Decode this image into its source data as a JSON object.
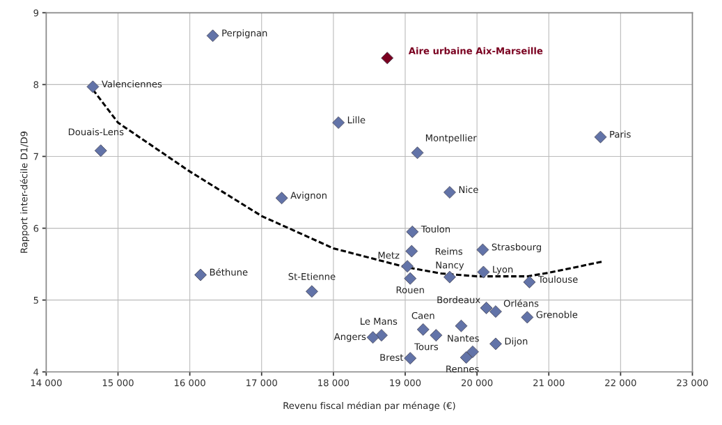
{
  "chart_data": {
    "type": "scatter",
    "xlabel": "Revenu fiscal médian par ménage (€)",
    "ylabel": "Rapport inter-décile D1/D9",
    "xlim": [
      14000,
      23000
    ],
    "xticks": [
      {
        "value": 14000,
        "label": "14 000"
      },
      {
        "value": 15000,
        "label": "15 000"
      },
      {
        "value": 16000,
        "label": "16 000"
      },
      {
        "value": 17000,
        "label": "17 000"
      },
      {
        "value": 18000,
        "label": "18 000"
      },
      {
        "value": 19000,
        "label": "19 000"
      },
      {
        "value": 20000,
        "label": "20 000"
      },
      {
        "value": 21000,
        "label": "21 000"
      },
      {
        "value": 22000,
        "label": "22 000"
      },
      {
        "value": 23000,
        "label": "23 000"
      }
    ],
    "ylim": [
      4,
      9
    ],
    "yticks": [
      4,
      5,
      6,
      7,
      8,
      9
    ],
    "grid": true,
    "marker": "diamond",
    "legend": false,
    "series": [
      {
        "color": "#6273a8",
        "x": [
          14650,
          14760,
          16320,
          16150,
          17280,
          17700,
          18070,
          19170,
          19620,
          21720,
          19100,
          19090,
          19030,
          19070,
          19620,
          20080,
          20090,
          20730,
          20130,
          20260,
          20700,
          19250,
          19780,
          19430,
          18670,
          18550,
          20260,
          19070,
          19850,
          19940
        ],
        "values": [
          7.97,
          7.08,
          8.68,
          5.35,
          6.42,
          5.12,
          7.47,
          7.05,
          6.5,
          7.27,
          5.95,
          5.68,
          5.47,
          5.3,
          5.32,
          5.7,
          5.39,
          5.25,
          4.89,
          4.84,
          4.76,
          4.59,
          4.64,
          4.51,
          4.51,
          4.48,
          4.39,
          4.19,
          4.2,
          4.28
        ]
      },
      {
        "name": "Aire urbaine Aix-Marseille",
        "color": "#7a0020",
        "x": [
          18750
        ],
        "values": [
          8.37
        ]
      },
      {
        "type": "line",
        "line_style": "dashed",
        "marker": "none",
        "color": "#000000",
        "x": [
          14650,
          15000,
          16000,
          17000,
          18000,
          19000,
          19500,
          20000,
          20700,
          21000,
          21770
        ],
        "values": [
          7.93,
          7.47,
          6.79,
          6.17,
          5.72,
          5.46,
          5.37,
          5.33,
          5.33,
          5.38,
          5.54
        ]
      }
    ],
    "annotations": [
      {
        "text": "Valenciennes",
        "x": 14650,
        "y": 7.97
      },
      {
        "text": "Douais-Lens",
        "x": 14760,
        "y": 7.08
      },
      {
        "text": "Perpignan",
        "x": 16320,
        "y": 8.68
      },
      {
        "text": "Béthune",
        "x": 16150,
        "y": 5.35
      },
      {
        "text": "Avignon",
        "x": 17280,
        "y": 6.42
      },
      {
        "text": "St-Etienne",
        "x": 17700,
        "y": 5.12
      },
      {
        "text": "Lille",
        "x": 18070,
        "y": 7.47
      },
      {
        "text": "Montpellier",
        "x": 19170,
        "y": 7.05
      },
      {
        "text": "Nice",
        "x": 19620,
        "y": 6.5
      },
      {
        "text": "Paris",
        "x": 21720,
        "y": 7.27
      },
      {
        "text": "Toulon",
        "x": 19100,
        "y": 5.95
      },
      {
        "text": "Reims",
        "x": 19090,
        "y": 5.68
      },
      {
        "text": "Metz",
        "x": 19030,
        "y": 5.47
      },
      {
        "text": "Rouen",
        "x": 19070,
        "y": 5.3
      },
      {
        "text": "Nancy",
        "x": 19620,
        "y": 5.32
      },
      {
        "text": "Strasbourg",
        "x": 20080,
        "y": 5.7
      },
      {
        "text": "Lyon",
        "x": 20090,
        "y": 5.39
      },
      {
        "text": "Toulouse",
        "x": 20730,
        "y": 5.25
      },
      {
        "text": "Bordeaux",
        "x": 20130,
        "y": 4.89
      },
      {
        "text": "Orléans",
        "x": 20260,
        "y": 4.84
      },
      {
        "text": "Grenoble",
        "x": 20700,
        "y": 4.76
      },
      {
        "text": "Caen",
        "x": 19250,
        "y": 4.59
      },
      {
        "text": "Nantes",
        "x": 19780,
        "y": 4.64
      },
      {
        "text": "Tours",
        "x": 19430,
        "y": 4.51
      },
      {
        "text": "Le Mans",
        "x": 18670,
        "y": 4.51
      },
      {
        "text": "Angers",
        "x": 18550,
        "y": 4.48
      },
      {
        "text": "Dijon",
        "x": 20260,
        "y": 4.39
      },
      {
        "text": "Brest",
        "x": 19070,
        "y": 4.19
      },
      {
        "text": "Rennes",
        "x": 19850,
        "y": 4.2
      }
    ]
  }
}
